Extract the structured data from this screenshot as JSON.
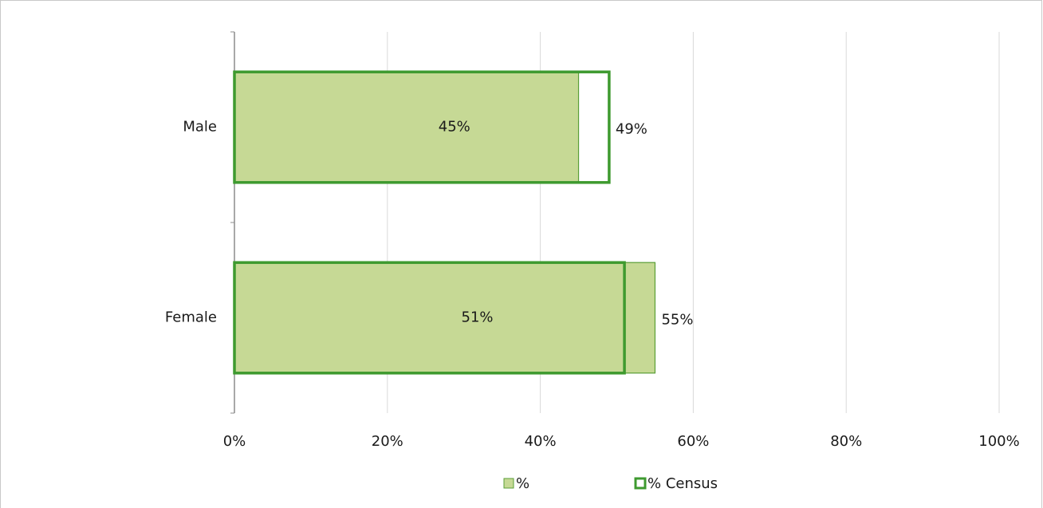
{
  "chart_data": {
    "type": "bar",
    "orientation": "horizontal",
    "categories": [
      "Male",
      "Female"
    ],
    "series": [
      {
        "name": "%",
        "color": "#c6d995",
        "values": [
          45,
          55
        ],
        "value_labels": [
          "45%",
          "55%"
        ]
      },
      {
        "name": "% Census",
        "color": "#3e9a2f",
        "values": [
          49,
          51
        ],
        "value_labels": [
          "49%",
          "51%"
        ]
      }
    ],
    "xlim": [
      0,
      100
    ],
    "xticks": [
      {
        "value": 0,
        "label": "0%"
      },
      {
        "value": 20,
        "label": "20%"
      },
      {
        "value": 40,
        "label": "40%"
      },
      {
        "value": 60,
        "label": "60%"
      },
      {
        "value": 80,
        "label": "80%"
      },
      {
        "value": 100,
        "label": "100%"
      }
    ],
    "grid": true,
    "legend": "bottom"
  }
}
